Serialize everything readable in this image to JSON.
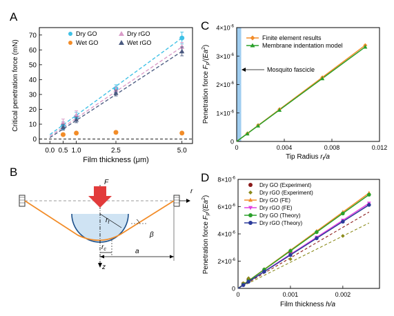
{
  "panels": {
    "A": {
      "label": "A",
      "type": "scatter",
      "xlabel": "Film thickness (μm)",
      "ylabel": "Critical penetration force (mN)",
      "xlim": [
        -0.4,
        5.4
      ],
      "ylim": [
        -3,
        75
      ],
      "xticks": [
        0.0,
        0.5,
        1.0,
        2.5,
        5.0
      ],
      "xtick_labels": [
        "0.0",
        "0.5",
        "1.0",
        "2.5",
        "5.0"
      ],
      "yticks": [
        0,
        10,
        20,
        30,
        40,
        50,
        60,
        70
      ],
      "ytick_labels": [
        "0",
        "10",
        "20",
        "30",
        "40",
        "50",
        "60",
        "70"
      ],
      "legend": [
        "Dry GO",
        "Dry rGO",
        "Wet GO",
        "Wet rGO"
      ],
      "series": [
        {
          "name": "Dry GO",
          "color": "#3fc1e6",
          "marker": "circle",
          "x": [
            0.5,
            1.0,
            2.5,
            5.0
          ],
          "y": [
            9,
            15,
            34,
            68
          ],
          "err": [
            2.5,
            3,
            2.5,
            4
          ],
          "fit": [
            [
              0,
              3
            ],
            [
              5.0,
              68
            ]
          ]
        },
        {
          "name": "Dry rGO",
          "color": "#d99cc8",
          "marker": "triangle",
          "x": [
            0.5,
            1.0,
            2.5,
            5.0
          ],
          "y": [
            11,
            16,
            33,
            62
          ],
          "err": [
            2.5,
            3,
            2,
            3
          ],
          "fit": [
            [
              0,
              2
            ],
            [
              5.0,
              62
            ]
          ]
        },
        {
          "name": "Wet GO",
          "color": "#f28c28",
          "marker": "circle",
          "x": [
            0.5,
            1.0,
            2.5,
            5.0
          ],
          "y": [
            3,
            4,
            4.5,
            4
          ],
          "err": [
            1,
            1,
            1,
            1
          ],
          "fit": null
        },
        {
          "name": "Wet rGO",
          "color": "#4a5a80",
          "marker": "triangle",
          "x": [
            0.5,
            1.0,
            2.5,
            5.0
          ],
          "y": [
            8,
            13,
            31,
            59
          ],
          "err": [
            2,
            2,
            2,
            3
          ],
          "fit": [
            [
              0,
              1
            ],
            [
              5.0,
              59
            ]
          ]
        }
      ]
    },
    "B": {
      "label": "B",
      "labels": {
        "F": "F",
        "r": "r",
        "z": "z",
        "rt": "r",
        "rt_sub": "t",
        "rc": "r",
        "rc_sub": "c",
        "beta": "β",
        "a": "a"
      }
    },
    "C": {
      "label": "C",
      "type": "line",
      "xlabel_prefix": "Tip Radius  ",
      "xlabel_var": "r",
      "xlabel_sub": "t",
      "xlabel_suffix": "/a",
      "ylabel_prefix": "Penetration force  ",
      "ylabel_var": "F",
      "ylabel_sub": "p",
      "ylabel_suffix": "/(Ea",
      "ylabel_sup": "2",
      "ylabel_end": ")",
      "xlim": [
        0,
        0.012
      ],
      "ylim": [
        0,
        4e-06
      ],
      "xtick_labels": [
        "0",
        "0.004",
        "0.008",
        "0.012"
      ],
      "xticks": [
        0,
        0.004,
        0.008,
        0.012
      ],
      "yticks": [
        0,
        1e-06,
        2e-06,
        3e-06,
        4e-06
      ],
      "ytick_mant": [
        "0",
        "1×10",
        "2×10",
        "3×10",
        "4×10"
      ],
      "ytick_exp": [
        "",
        "-6",
        "-6",
        "-6",
        "-6"
      ],
      "annotation": "Mosquito fascicle",
      "band": [
        0.0,
        0.00035
      ],
      "series": [
        {
          "name": "Finite element results",
          "color": "#f28c28",
          "marker": "diamond",
          "x": [
            0.0009,
            0.0018,
            0.0036,
            0.0072,
            0.0108
          ],
          "y": [
            2.8e-07,
            5.7e-07,
            1.13e-06,
            2.25e-06,
            3.38e-06
          ],
          "fit": [
            [
              0,
              0
            ],
            [
              0.0108,
              3.38e-06
            ]
          ]
        },
        {
          "name": "Membrane indentation model",
          "color": "#2aa02a",
          "marker": "triangle",
          "x": [
            0.0009,
            0.0018,
            0.0036,
            0.0072,
            0.0108
          ],
          "y": [
            2.7e-07,
            5.5e-07,
            1.1e-06,
            2.21e-06,
            3.32e-06
          ],
          "fit": [
            [
              0,
              0
            ],
            [
              0.0108,
              3.32e-06
            ]
          ]
        }
      ]
    },
    "D": {
      "label": "D",
      "type": "line",
      "xlabel_prefix": "Film thickness  ",
      "xlabel_var": "h",
      "xlabel_suffix": "/a",
      "ylabel_prefix": "Penetration force  ",
      "ylabel_var": "F",
      "ylabel_sub": "p",
      "ylabel_suffix": "/(Ea",
      "ylabel_sup": "2",
      "ylabel_end": ")",
      "xlim": [
        0,
        0.0027
      ],
      "ylim": [
        0,
        8e-06
      ],
      "xticks": [
        0,
        0.001,
        0.002
      ],
      "xtick_labels": [
        "0",
        "0.001",
        "0.002"
      ],
      "yticks": [
        0,
        2e-06,
        4e-06,
        6e-06,
        8e-06
      ],
      "ytick_mant": [
        "0",
        "2×10",
        "4×10",
        "6×10",
        "8×10"
      ],
      "ytick_exp": [
        "",
        "-6",
        "-6",
        "-6",
        "-6"
      ],
      "series": [
        {
          "name": "Dry GO (Experiment)",
          "color": "#8b1a1a",
          "marker": "circle",
          "kind": "exp",
          "x": [
            0.0001,
            0.0002,
            0.0005,
            0.001
          ],
          "y": [
            3.5e-07,
            6.5e-07,
            1.3e-06,
            2.6e-06
          ],
          "fit": [
            [
              0,
              0
            ],
            [
              0.0025,
              5.6e-06
            ]
          ]
        },
        {
          "name": "Dry rGO (Experiment)",
          "color": "#8a8a1a",
          "marker": "diamond",
          "kind": "exp",
          "x": [
            0.0001,
            0.0002,
            0.0005,
            0.001,
            0.002
          ],
          "y": [
            3.8e-07,
            7.5e-07,
            1.4e-06,
            2.15e-06,
            3.85e-06
          ],
          "fit": [
            [
              0,
              0
            ],
            [
              0.0025,
              4.8e-06
            ]
          ]
        },
        {
          "name": "Dry GO (FE)",
          "color": "#f28c28",
          "marker": "triangle",
          "kind": "model",
          "x": [
            0.0001,
            0.0002,
            0.0005,
            0.001,
            0.0015,
            0.002,
            0.0025
          ],
          "y": [
            2.8e-07,
            5.6e-07,
            1.4e-06,
            2.8e-06,
            4.2e-06,
            5.6e-06,
            7e-06
          ],
          "fit": [
            [
              0,
              0
            ],
            [
              0.0025,
              7e-06
            ]
          ]
        },
        {
          "name": "Dry rGO (FE)",
          "color": "#e040e0",
          "marker": "triangle-down",
          "kind": "model",
          "x": [
            0.0001,
            0.0002,
            0.0005,
            0.001,
            0.0015,
            0.002,
            0.0025
          ],
          "y": [
            2.5e-07,
            5e-07,
            1.25e-06,
            2.5e-06,
            3.75e-06,
            5e-06,
            6.25e-06
          ],
          "fit": [
            [
              0,
              0
            ],
            [
              0.0025,
              6.25e-06
            ]
          ]
        },
        {
          "name": "Dry GO (Theory)",
          "color": "#2aa02a",
          "marker": "circle",
          "kind": "model",
          "x": [
            0.0001,
            0.0002,
            0.0005,
            0.001,
            0.0015,
            0.002,
            0.0025
          ],
          "y": [
            2.75e-07,
            5.5e-07,
            1.38e-06,
            2.75e-06,
            4.13e-06,
            5.5e-06,
            6.88e-06
          ],
          "fit": [
            [
              0,
              0
            ],
            [
              0.0025,
              6.88e-06
            ]
          ]
        },
        {
          "name": "Dry rGO (Theory)",
          "color": "#2b3a9a",
          "marker": "circle",
          "kind": "model",
          "x": [
            0.0001,
            0.0002,
            0.0005,
            0.001,
            0.0015,
            0.002,
            0.0025
          ],
          "y": [
            2.45e-07,
            4.9e-07,
            1.23e-06,
            2.45e-06,
            3.68e-06,
            4.9e-06,
            6.13e-06
          ],
          "fit": [
            [
              0,
              0
            ],
            [
              0.0025,
              6.13e-06
            ]
          ]
        }
      ]
    }
  }
}
